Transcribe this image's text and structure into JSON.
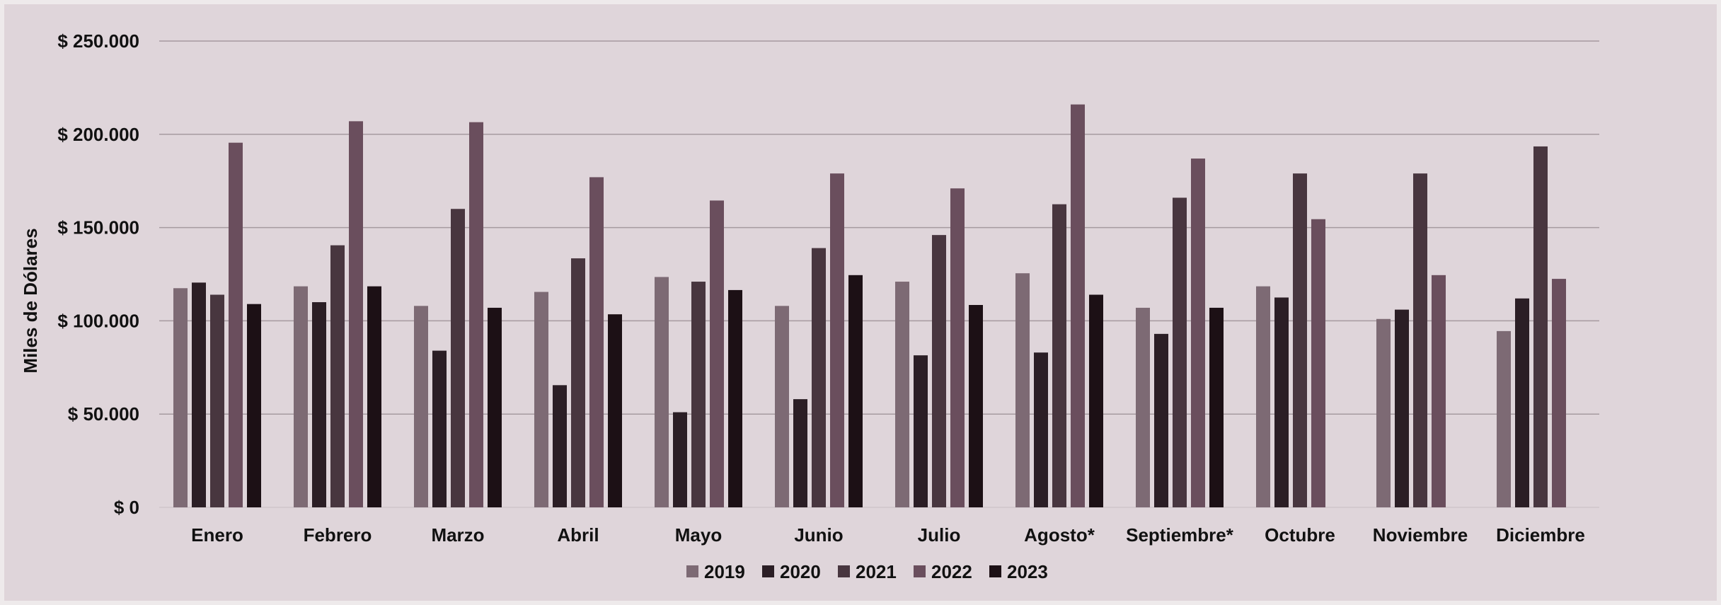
{
  "colors": {
    "page_background": "#eeeaeb",
    "plot_background": "#dfd5da",
    "gridline": "#a69aa0",
    "text": "#111111"
  },
  "chart_data": {
    "type": "bar",
    "title": "",
    "xlabel": "",
    "ylabel": "Miles de Dólares",
    "ylim": [
      0,
      250000
    ],
    "y_ticks": [
      0,
      50000,
      100000,
      150000,
      200000,
      250000
    ],
    "y_tick_labels": [
      "$ 0",
      "$ 50.000",
      "$ 100.000",
      "$ 150.000",
      "$ 200.000",
      "$ 250.000"
    ],
    "grid": true,
    "legend_position": "bottom-center",
    "categories": [
      "Enero",
      "Febrero",
      "Marzo",
      "Abril",
      "Mayo",
      "Junio",
      "Julio",
      "Agosto*",
      "Septiembre*",
      "Octubre",
      "Noviembre",
      "Diciembre"
    ],
    "series": [
      {
        "name": "2019",
        "color": "#7d6a74",
        "values": [
          117500,
          118500,
          108000,
          115500,
          123500,
          108000,
          121000,
          125500,
          107000,
          118500,
          101000,
          94500
        ]
      },
      {
        "name": "2020",
        "color": "#2b1e25",
        "values": [
          120500,
          110000,
          84000,
          65500,
          51000,
          58000,
          81500,
          83000,
          93000,
          112500,
          106000,
          112000
        ]
      },
      {
        "name": "2021",
        "color": "#48363f",
        "values": [
          114000,
          140500,
          160000,
          133500,
          121000,
          139000,
          146000,
          162500,
          166000,
          179000,
          179000,
          193500
        ]
      },
      {
        "name": "2022",
        "color": "#6a4e5d",
        "values": [
          195500,
          207000,
          206500,
          177000,
          164500,
          179000,
          171000,
          216000,
          187000,
          154500,
          124500,
          122500
        ]
      },
      {
        "name": "2023",
        "color": "#1c1015",
        "values": [
          109000,
          118500,
          107000,
          103500,
          116500,
          124500,
          108500,
          114000,
          107000,
          null,
          null,
          null
        ]
      }
    ]
  }
}
